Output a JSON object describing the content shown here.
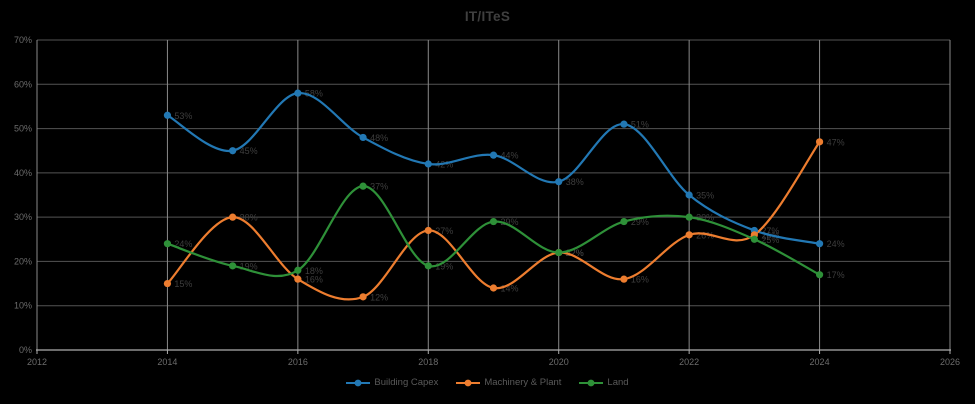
{
  "chart_data": {
    "type": "line",
    "title": "IT/ITeS",
    "xlabel": "",
    "ylabel": "",
    "xlim": [
      2012,
      2026
    ],
    "ylim": [
      0,
      70
    ],
    "x_ticks": [
      2012,
      2014,
      2016,
      2018,
      2020,
      2022,
      2024,
      2026
    ],
    "y_ticks": [
      0,
      10,
      20,
      30,
      40,
      50,
      60,
      70
    ],
    "y_tick_suffix": "%",
    "point_label_suffix": "%",
    "grid": true,
    "legend_position": "bottom",
    "x": [
      2014,
      2015,
      2016,
      2017,
      2018,
      2019,
      2020,
      2021,
      2022,
      2023,
      2024
    ],
    "series": [
      {
        "name": "Building Capex",
        "color": "#2278b4",
        "values": [
          53,
          45,
          58,
          48,
          42,
          44,
          38,
          51,
          35,
          27,
          24
        ]
      },
      {
        "name": "Machinery & Plant",
        "color": "#ed7d2f",
        "values": [
          15,
          30,
          16,
          12,
          27,
          14,
          22,
          16,
          26,
          26,
          47
        ]
      },
      {
        "name": "Land",
        "color": "#2e9038",
        "values": [
          24,
          19,
          18,
          37,
          19,
          29,
          22,
          29,
          30,
          25,
          17
        ]
      }
    ]
  },
  "colors": {
    "background": "#000000",
    "title": "#3f3f3f",
    "tick_label": "#6b6b6b",
    "data_label": "#3e3e3e",
    "legend_text": "#5a5a5a",
    "grid_horizontal": "#545454",
    "grid_vertical": "#8a8a8a",
    "axis_line": "#aeaeae"
  }
}
